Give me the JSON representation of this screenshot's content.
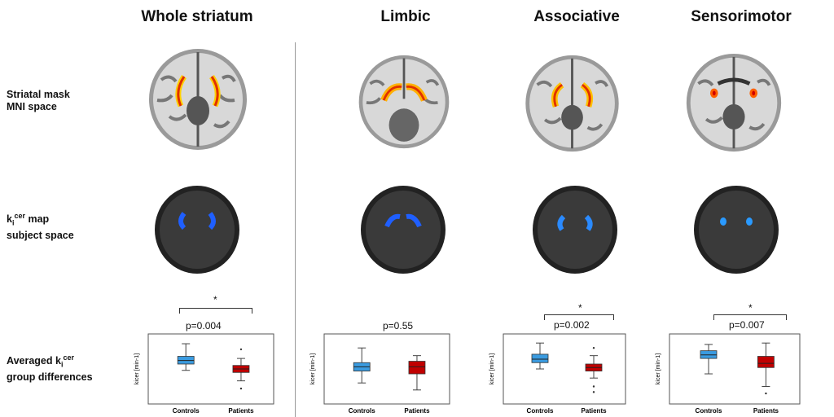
{
  "columns": [
    {
      "title": "Whole striatum",
      "p_label": "p=0.004",
      "significant": true,
      "star": "*",
      "mask": "whole"
    },
    {
      "title": "Limbic",
      "p_label": "p=0.55",
      "significant": false,
      "star": "",
      "mask": "limbic"
    },
    {
      "title": "Associative",
      "p_label": "p=0.002",
      "significant": true,
      "star": "*",
      "mask": "associative"
    },
    {
      "title": "Sensorimotor",
      "p_label": "p=0.007",
      "significant": true,
      "star": "*",
      "mask": "sensorimotor"
    }
  ],
  "rows": {
    "mask_line1": "Striatal mask",
    "mask_line2": "MNI space",
    "map_line1": "k",
    "map_sub": "i",
    "map_sup": "cer",
    "map_line1_rest": " map",
    "map_line2": "subject space",
    "avg_prefix": "Averaged k",
    "avg_sub": "i",
    "avg_sup": "cer",
    "avg_line2": "group differences"
  },
  "chart_data": [
    {
      "type": "box",
      "title": "Whole striatum",
      "ylabel": "kicer [min-1]",
      "categories": [
        "Controls",
        "Patients"
      ],
      "p": "p=0.004",
      "series": [
        {
          "name": "Controls",
          "color": "#3a9be0",
          "min": 0.48,
          "q1": 0.57,
          "median": 0.62,
          "q3": 0.68,
          "max": 0.86,
          "outliers": []
        },
        {
          "name": "Patients",
          "color": "#c00000",
          "min": 0.33,
          "q1": 0.45,
          "median": 0.5,
          "q3": 0.55,
          "max": 0.65,
          "outliers": [
            0.22,
            0.78
          ]
        }
      ]
    },
    {
      "type": "box",
      "title": "Limbic",
      "ylabel": "kicer [min-1]",
      "categories": [
        "Controls",
        "Patients"
      ],
      "p": "p=0.55",
      "series": [
        {
          "name": "Controls",
          "color": "#3a9be0",
          "min": 0.3,
          "q1": 0.47,
          "median": 0.53,
          "q3": 0.59,
          "max": 0.8,
          "outliers": []
        },
        {
          "name": "Patients",
          "color": "#c00000",
          "min": 0.2,
          "q1": 0.43,
          "median": 0.53,
          "q3": 0.61,
          "max": 0.69,
          "outliers": []
        }
      ]
    },
    {
      "type": "box",
      "title": "Associative",
      "ylabel": "kicer [min-1]",
      "categories": [
        "Controls",
        "Patients"
      ],
      "p": "p=0.002",
      "series": [
        {
          "name": "Controls",
          "color": "#3a9be0",
          "min": 0.5,
          "q1": 0.59,
          "median": 0.64,
          "q3": 0.71,
          "max": 0.87,
          "outliers": []
        },
        {
          "name": "Patients",
          "color": "#c00000",
          "min": 0.37,
          "q1": 0.47,
          "median": 0.52,
          "q3": 0.57,
          "max": 0.69,
          "outliers": [
            0.17,
            0.25,
            0.8
          ]
        }
      ]
    },
    {
      "type": "box",
      "title": "Sensorimotor",
      "ylabel": "kicer [min-1]",
      "categories": [
        "Controls",
        "Patients"
      ],
      "p": "p=0.007",
      "series": [
        {
          "name": "Controls",
          "color": "#3a9be0",
          "min": 0.43,
          "q1": 0.65,
          "median": 0.7,
          "q3": 0.76,
          "max": 0.85,
          "outliers": []
        },
        {
          "name": "Patients",
          "color": "#c00000",
          "min": 0.25,
          "q1": 0.52,
          "median": 0.58,
          "q3": 0.68,
          "max": 0.87,
          "outliers": [
            0.15
          ]
        }
      ]
    }
  ]
}
